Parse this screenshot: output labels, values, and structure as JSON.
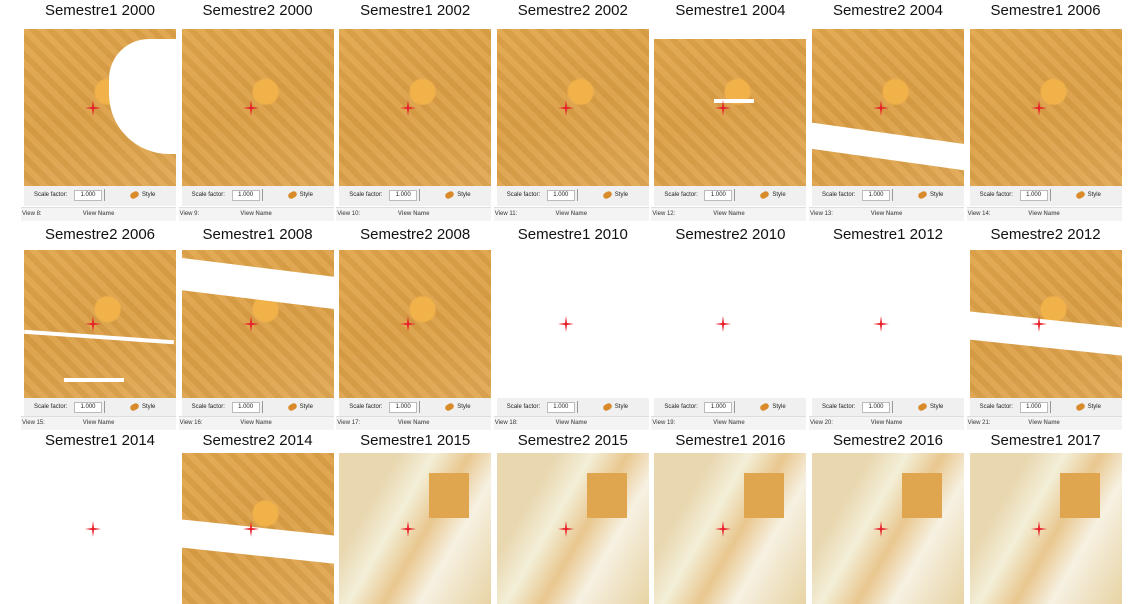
{
  "rows": [
    {
      "panels": [
        {
          "title": "Semestre1 2000",
          "scale_label": "Scale factor:",
          "scale_value": "1.000",
          "style": "Style",
          "view": "View 8:",
          "view_name": "View Name"
        },
        {
          "title": "Semestre2 2000",
          "scale_label": "Scale factor:",
          "scale_value": "1.000",
          "style": "Style",
          "view": "View 9:",
          "view_name": "View Name"
        },
        {
          "title": "Semestre1 2002",
          "scale_label": "Scale factor:",
          "scale_value": "1.000",
          "style": "Style",
          "view": "View 10:",
          "view_name": "View Name"
        },
        {
          "title": "Semestre2 2002",
          "scale_label": "Scale factor:",
          "scale_value": "1.000",
          "style": "Style",
          "view": "View 11:",
          "view_name": "View Name"
        },
        {
          "title": "Semestre1 2004",
          "scale_label": "Scale factor:",
          "scale_value": "1.000",
          "style": "Style",
          "view": "View 12:",
          "view_name": "View Name"
        },
        {
          "title": "Semestre2 2004",
          "scale_label": "Scale factor:",
          "scale_value": "1.000",
          "style": "Style",
          "view": "View 13:",
          "view_name": "View Name"
        },
        {
          "title": "Semestre1 2006",
          "scale_label": "Scale factor:",
          "scale_value": "1.000",
          "style": "Style",
          "view": "View 14:",
          "view_name": "View Name"
        }
      ]
    },
    {
      "panels": [
        {
          "title": "Semestre2 2006",
          "scale_label": "Scale factor:",
          "scale_value": "1.000",
          "style": "Style",
          "view": "View 15:",
          "view_name": "View Name"
        },
        {
          "title": "Semestre1 2008",
          "scale_label": "Scale factor:",
          "scale_value": "1.000",
          "style": "Style",
          "view": "View 16:",
          "view_name": "View Name"
        },
        {
          "title": "Semestre2 2008",
          "scale_label": "Scale factor:",
          "scale_value": "1.000",
          "style": "Style",
          "view": "View 17:",
          "view_name": "View Name"
        },
        {
          "title": "Semestre1 2010",
          "scale_label": "Scale factor:",
          "scale_value": "1.000",
          "style": "Style",
          "view": "View 18:",
          "view_name": "View Name"
        },
        {
          "title": "Semestre2 2010",
          "scale_label": "Scale factor:",
          "scale_value": "1.000",
          "style": "Style",
          "view": "View 19:",
          "view_name": "View Name"
        },
        {
          "title": "Semestre1 2012",
          "scale_label": "Scale factor:",
          "scale_value": "1.000",
          "style": "Style",
          "view": "View 20:",
          "view_name": "View Name"
        },
        {
          "title": "Semestre2 2012",
          "scale_label": "Scale factor:",
          "scale_value": "1.000",
          "style": "Style",
          "view": "View 21:",
          "view_name": "View Name"
        }
      ]
    },
    {
      "panels": [
        {
          "title": "Semestre1 2014"
        },
        {
          "title": "Semestre2 2014"
        },
        {
          "title": "Semestre1 2015"
        },
        {
          "title": "Semestre2 2015"
        },
        {
          "title": "Semestre1 2016"
        },
        {
          "title": "Semestre2 2016"
        },
        {
          "title": "Semestre1 2017"
        }
      ]
    }
  ]
}
